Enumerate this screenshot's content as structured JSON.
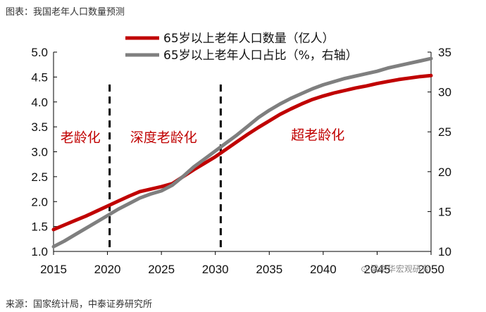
{
  "caption": "图表：我国老年人口数量预测",
  "source": "来源：国家统计局，中泰证券研究所",
  "watermark": "⊙ 梁中华宏观研究",
  "colors": {
    "population": "#c00000",
    "ratio": "#7f7f7f",
    "phase_text": "#c00000"
  },
  "chart_data": {
    "type": "line",
    "x": [
      2015,
      2016,
      2017,
      2018,
      2019,
      2020,
      2021,
      2022,
      2023,
      2024,
      2025,
      2026,
      2027,
      2028,
      2029,
      2030,
      2031,
      2032,
      2033,
      2034,
      2035,
      2036,
      2037,
      2038,
      2039,
      2040,
      2041,
      2042,
      2043,
      2044,
      2045,
      2046,
      2047,
      2048,
      2049,
      2050
    ],
    "xlim": [
      2015,
      2050
    ],
    "xticks": [
      "2015",
      "2020",
      "2025",
      "2030",
      "2035",
      "2040",
      "2045",
      "2050"
    ],
    "ylim_left": [
      1.0,
      5.0
    ],
    "yticks_left": [
      "1.0",
      "1.5",
      "2.0",
      "2.5",
      "3.0",
      "3.5",
      "4.0",
      "4.5",
      "5.0"
    ],
    "ylim_right": [
      10,
      35
    ],
    "yticks_right": [
      "10",
      "15",
      "20",
      "25",
      "30",
      "35"
    ],
    "series": [
      {
        "name": "65岁以上老年人口数量（亿人）",
        "axis": "left",
        "color": "#c00000",
        "values": [
          1.44,
          1.53,
          1.62,
          1.71,
          1.81,
          1.91,
          2.01,
          2.11,
          2.2,
          2.25,
          2.3,
          2.36,
          2.5,
          2.64,
          2.77,
          2.9,
          3.05,
          3.2,
          3.35,
          3.49,
          3.62,
          3.75,
          3.86,
          3.96,
          4.05,
          4.12,
          4.18,
          4.23,
          4.28,
          4.32,
          4.37,
          4.41,
          4.45,
          4.48,
          4.51,
          4.53
        ]
      },
      {
        "name": "65岁以上老年人口占比（%，右轴）",
        "axis": "right",
        "color": "#7f7f7f",
        "values": [
          10.6,
          11.3,
          12.1,
          12.9,
          13.7,
          14.5,
          15.3,
          16.0,
          16.7,
          17.2,
          17.6,
          18.3,
          19.4,
          20.6,
          21.6,
          22.6,
          23.6,
          24.6,
          25.7,
          26.8,
          27.7,
          28.5,
          29.2,
          29.8,
          30.4,
          30.9,
          31.3,
          31.7,
          32.0,
          32.3,
          32.6,
          33.0,
          33.3,
          33.6,
          33.9,
          34.2
        ]
      }
    ],
    "dividers": [
      2020.2,
      2030.5
    ],
    "phase_labels": [
      {
        "text": "老龄化",
        "x": 2017.5,
        "y": 3.2
      },
      {
        "text": "深度老龄化",
        "x": 2025.2,
        "y": 3.2
      },
      {
        "text": "超老龄化",
        "x": 2039.5,
        "y": 3.25
      }
    ],
    "legend": "top-center",
    "grid": false
  }
}
